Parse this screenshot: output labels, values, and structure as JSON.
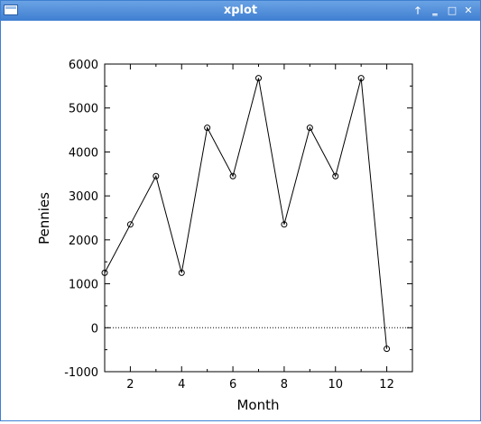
{
  "window": {
    "title": "xplot",
    "title_color": "#3f7fd1",
    "buttons": {
      "raise_glyph": "🡑",
      "minimize_glyph": "‗",
      "maximize_glyph": "□",
      "close_glyph": "✕"
    }
  },
  "chart_data": {
    "type": "line",
    "xlabel": "Month",
    "ylabel": "Pennies",
    "xlim": [
      1,
      13
    ],
    "ylim": [
      -1000,
      6000
    ],
    "x_ticks": [
      2,
      4,
      6,
      8,
      10,
      12
    ],
    "y_ticks": [
      -1000,
      0,
      1000,
      2000,
      3000,
      4000,
      5000,
      6000
    ],
    "grid": false,
    "zero_line": "dotted",
    "marker": "open-circle",
    "series": [
      {
        "x": [
          1,
          2,
          3,
          4,
          5,
          6,
          7,
          8,
          9,
          10,
          11,
          12
        ],
        "values": [
          1250,
          2350,
          3450,
          1250,
          4550,
          3450,
          5680,
          2350,
          4550,
          3450,
          5680,
          -480
        ]
      }
    ]
  }
}
